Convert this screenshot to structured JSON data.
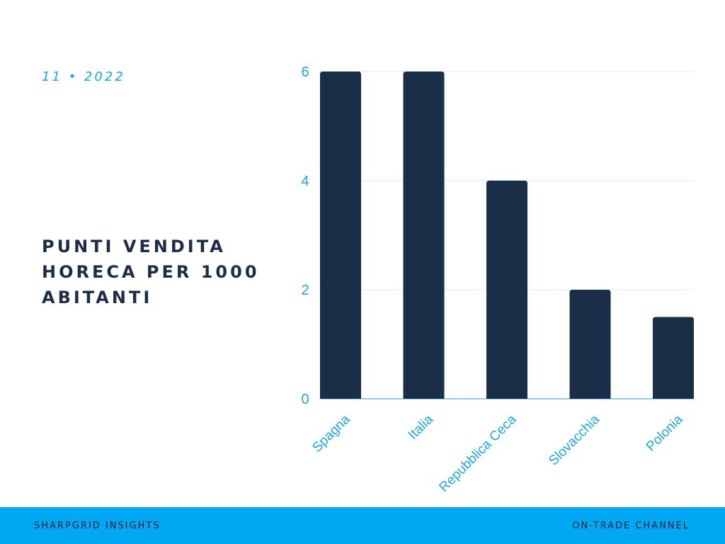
{
  "header": {
    "date": "11 • 2022",
    "title": "PUNTI VENDITA HORECA PER 1000 ABITANTI"
  },
  "footer": {
    "left": "SHARPGRID INSIGHTS",
    "right": "ON-TRADE CHANNEL"
  },
  "colors": {
    "bar": "#1b2e47",
    "accent": "#1aa7ec",
    "grid": "#d6eef9",
    "footer_bg": "#00a8f3"
  },
  "chart_data": {
    "type": "bar",
    "title": "PUNTI VENDITA HORECA PER 1000 ABITANTI",
    "categories": [
      "Spagna",
      "Italia",
      "Repubblica Ceca",
      "Slovacchia",
      "Polonia"
    ],
    "values": [
      6,
      6,
      4,
      2,
      1.5
    ],
    "ylim": [
      0,
      6
    ],
    "yticks": [
      0,
      2,
      4,
      6
    ],
    "grid": true,
    "legend": "none"
  }
}
